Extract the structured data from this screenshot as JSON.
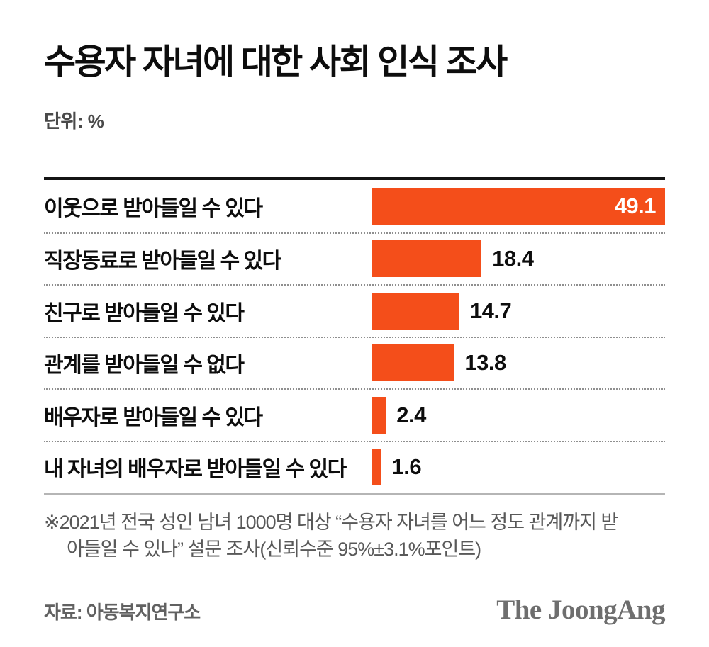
{
  "header": {
    "title": "수용자 자녀에 대한 사회 인식 조사",
    "unit_label": "단위: %"
  },
  "chart_data": {
    "type": "bar",
    "orientation": "horizontal",
    "title": "수용자 자녀에 대한 사회 인식 조사",
    "unit": "%",
    "categories": [
      "이웃으로 받아들일 수 있다",
      "직장동료로 받아들일 수 있다",
      "친구로 받아들일 수 있다",
      "관계를 받아들일 수 없다",
      "배우자로 받아들일 수 있다",
      "내 자녀의 배우자로 받아들일 수 있다"
    ],
    "values": [
      49.1,
      18.4,
      14.7,
      13.8,
      2.4,
      1.6
    ],
    "xlim": [
      0,
      49.1
    ],
    "grid": false,
    "legend": "none",
    "bar_color": "#f44e1a",
    "value_label_position": "end-of-bar",
    "separator_style": "dotted"
  },
  "footnote": {
    "text": "※2021년 전국 성인 남녀 1000명 대상 “수용자 자녀를 어느 정도 관계까지 받아들일 수 있나” 설문 조사(신뢰수준 95%±3.1%포인트)"
  },
  "footer": {
    "source": "자료: 아동복지연구소",
    "brand": "The JoongAng"
  }
}
